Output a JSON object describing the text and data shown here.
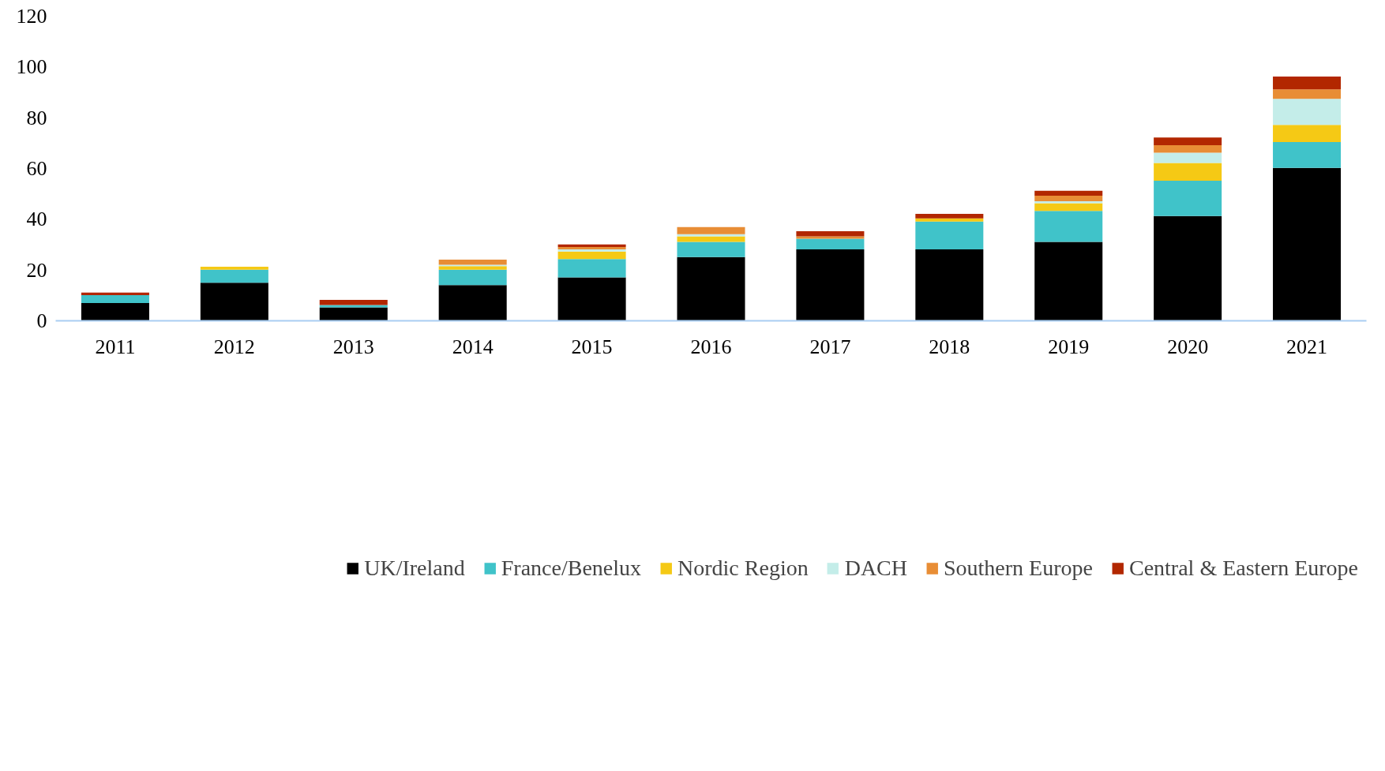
{
  "chart_data": {
    "type": "bar",
    "stacked": true,
    "categories": [
      "2011",
      "2012",
      "2013",
      "2014",
      "2015",
      "2016",
      "2017",
      "2018",
      "2019",
      "2020",
      "2021"
    ],
    "series": [
      {
        "name": "UK/Ireland",
        "color": "#000000",
        "values": [
          7.0,
          15.0,
          5.3,
          14.1,
          17.1,
          25.1,
          28.1,
          28.1,
          31.1,
          41.3,
          60.2
        ]
      },
      {
        "name": "France/Benelux",
        "color": "#40c3c9",
        "values": [
          3.1,
          5.1,
          0.9,
          6.0,
          7.2,
          6.0,
          4.2,
          11.0,
          12.2,
          13.9,
          10.2
        ]
      },
      {
        "name": "Nordic Region",
        "color": "#f5c915",
        "values": [
          null,
          1.2,
          null,
          1.4,
          3.0,
          2.2,
          null,
          1.2,
          3.0,
          7.0,
          6.8
        ]
      },
      {
        "name": "DACH",
        "color": "#c4ede9",
        "values": [
          null,
          null,
          null,
          0.6,
          0.8,
          0.8,
          null,
          null,
          0.8,
          4.0,
          10.2
        ]
      },
      {
        "name": "Southern Europe",
        "color": "#e88d35",
        "values": [
          null,
          null,
          null,
          2.0,
          1.0,
          2.8,
          1.0,
          null,
          2.2,
          3.0,
          3.8
        ]
      },
      {
        "name": "Central & Eastern Europe",
        "color": "#b22700",
        "values": [
          1.0,
          null,
          2.0,
          null,
          1.0,
          null,
          2.0,
          1.8,
          1.9,
          3.0,
          5.0
        ]
      }
    ],
    "ylim": [
      0,
      120
    ],
    "yticks": [
      0,
      20,
      40,
      60,
      80,
      100,
      120
    ],
    "grid": false,
    "legend": "bottom"
  }
}
